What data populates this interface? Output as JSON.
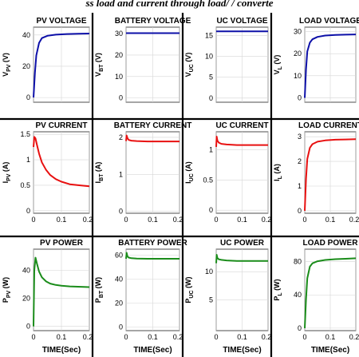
{
  "caption": "ss load and current through load/ / converte",
  "x_axis_label": "TIME(Sec)",
  "colors": {
    "voltage": "#0d10a8",
    "current": "#e81010",
    "power": "#1a8c1a",
    "separator": "#000000"
  },
  "chart_data": [
    {
      "type": "line",
      "title": "PV VOLTAGE",
      "ylabel": "V_PV (V)",
      "ylabel_main": "V",
      "ylabel_sub": "PV",
      "ylabel_unit": "(V)",
      "color": "#0d10a8",
      "xlim": [
        0,
        0.2
      ],
      "ylim": [
        -3,
        45
      ],
      "yticks": [
        "0",
        "20",
        "40"
      ],
      "ytick_values": [
        0,
        20,
        40
      ],
      "xticks": [
        "",
        "",
        ""
      ],
      "xtick_values": [
        0,
        0.1,
        0.2
      ],
      "series": [
        {
          "x": [
            0,
            0.005,
            0.01,
            0.02,
            0.03,
            0.05,
            0.08,
            0.12,
            0.16,
            0.2
          ],
          "values": [
            0,
            16,
            27,
            35,
            38,
            39.5,
            40.2,
            40.6,
            40.8,
            40.9
          ]
        }
      ]
    },
    {
      "type": "line",
      "title": "BATTERY VOLTAGE",
      "ylabel": "V_BT (V)",
      "ylabel_main": "V",
      "ylabel_sub": "BT",
      "ylabel_unit": "(V)",
      "color": "#0d10a8",
      "xlim": [
        0,
        0.2
      ],
      "ylim": [
        -2,
        33
      ],
      "yticks": [
        "0",
        "10",
        "20",
        "30"
      ],
      "ytick_values": [
        0,
        10,
        20,
        30
      ],
      "xticks": [
        "",
        "",
        ""
      ],
      "xtick_values": [
        0,
        0.1,
        0.2
      ],
      "series": [
        {
          "x": [
            0,
            0.2
          ],
          "values": [
            30.2,
            30.2
          ]
        }
      ]
    },
    {
      "type": "line",
      "title": "UC VOLTAGE",
      "ylabel": "V_UC (V)",
      "ylabel_main": "V",
      "ylabel_sub": "UC",
      "ylabel_unit": "(V)",
      "color": "#0d10a8",
      "xlim": [
        0,
        0.2
      ],
      "ylim": [
        -1,
        17
      ],
      "yticks": [
        "0",
        "5",
        "10",
        "15"
      ],
      "ytick_values": [
        0,
        5,
        10,
        15
      ],
      "xticks": [
        "",
        "",
        ""
      ],
      "xtick_values": [
        0,
        0.1,
        0.2
      ],
      "series": [
        {
          "x": [
            0,
            0.2
          ],
          "values": [
            16,
            16
          ]
        }
      ]
    },
    {
      "type": "line",
      "title": "LOAD VOLTAGE",
      "ylabel": "V_L (V)",
      "ylabel_main": "V",
      "ylabel_sub": "L",
      "ylabel_unit": "(V)",
      "color": "#0d10a8",
      "xlim": [
        0,
        0.2
      ],
      "ylim": [
        -2,
        32
      ],
      "yticks": [
        "0",
        "10",
        "20",
        "30"
      ],
      "ytick_values": [
        0,
        10,
        20,
        30
      ],
      "xticks": [
        "",
        "",
        ""
      ],
      "xtick_values": [
        0,
        0.1,
        0.2
      ],
      "series": [
        {
          "x": [
            0,
            0.005,
            0.01,
            0.02,
            0.03,
            0.05,
            0.08,
            0.12,
            0.16,
            0.2
          ],
          "values": [
            0,
            13,
            21,
            25,
            26.5,
            27.6,
            28.2,
            28.5,
            28.6,
            28.7
          ]
        }
      ]
    },
    {
      "type": "line",
      "title": "PV CURRENT",
      "ylabel": "I_PV (A)",
      "ylabel_main": "I",
      "ylabel_sub": "PV",
      "ylabel_unit": "(A)",
      "color": "#e81010",
      "xlim": [
        0,
        0.2
      ],
      "ylim": [
        -0.05,
        1.55
      ],
      "yticks": [
        "0",
        "0.5",
        "1",
        "1.5"
      ],
      "ytick_values": [
        0,
        0.5,
        1,
        1.5
      ],
      "xticks": [
        "0",
        "0.1",
        "0.2"
      ],
      "xtick_values": [
        0,
        0.1,
        0.2
      ],
      "series": [
        {
          "x": [
            0,
            0.003,
            0.007,
            0.012,
            0.02,
            0.03,
            0.045,
            0.06,
            0.08,
            0.1,
            0.13,
            0.16,
            0.2
          ],
          "values": [
            1.25,
            1.45,
            1.42,
            1.3,
            1.12,
            0.95,
            0.8,
            0.7,
            0.62,
            0.57,
            0.52,
            0.5,
            0.48
          ]
        }
      ]
    },
    {
      "type": "line",
      "title": "BATTERY CURRENT",
      "ylabel": "I_BT (A)",
      "ylabel_main": "I",
      "ylabel_sub": "BT",
      "ylabel_unit": "(A)",
      "color": "#e81010",
      "xlim": [
        0,
        0.2
      ],
      "ylim": [
        -0.05,
        2.15
      ],
      "yticks": [
        "0",
        "1",
        "2"
      ],
      "ytick_values": [
        0,
        1,
        2
      ],
      "xticks": [
        "0",
        "0.1",
        "0.2"
      ],
      "xtick_values": [
        0,
        0.1,
        0.2
      ],
      "series": [
        {
          "x": [
            0,
            0.002,
            0.005,
            0.01,
            0.02,
            0.04,
            0.08,
            0.2
          ],
          "values": [
            1.9,
            2.05,
            1.98,
            1.93,
            1.91,
            1.9,
            1.89,
            1.89
          ]
        }
      ]
    },
    {
      "type": "line",
      "title": "UC CURRENT",
      "ylabel": "I_UC (A)",
      "ylabel_main": "I",
      "ylabel_sub": "UC",
      "ylabel_unit": "(A)",
      "color": "#e81010",
      "xlim": [
        0,
        0.2
      ],
      "ylim": [
        -0.05,
        1.3
      ],
      "yticks": [
        "0",
        "0.5",
        "1"
      ],
      "ytick_values": [
        0,
        0.5,
        1
      ],
      "xticks": [
        "0",
        "0.1",
        "0.2"
      ],
      "xtick_values": [
        0,
        0.1,
        0.2
      ],
      "series": [
        {
          "x": [
            0,
            0.002,
            0.005,
            0.01,
            0.02,
            0.04,
            0.08,
            0.2
          ],
          "values": [
            1.05,
            1.22,
            1.15,
            1.12,
            1.1,
            1.09,
            1.08,
            1.08
          ]
        }
      ]
    },
    {
      "type": "line",
      "title": "LOAD CURRENT",
      "ylabel": "I_L (A)",
      "ylabel_main": "I",
      "ylabel_sub": "L",
      "ylabel_unit": "(A)",
      "color": "#e81010",
      "xlim": [
        0,
        0.2
      ],
      "ylim": [
        -0.1,
        3.2
      ],
      "yticks": [
        "0",
        "1",
        "2",
        "3"
      ],
      "ytick_values": [
        0,
        1,
        2,
        3
      ],
      "xticks": [
        "0",
        "0.1",
        "0.2"
      ],
      "xtick_values": [
        0,
        0.1,
        0.2
      ],
      "series": [
        {
          "x": [
            0,
            0.005,
            0.01,
            0.02,
            0.03,
            0.05,
            0.08,
            0.12,
            0.16,
            0.2
          ],
          "values": [
            0,
            1.3,
            2.1,
            2.55,
            2.7,
            2.8,
            2.85,
            2.88,
            2.89,
            2.9
          ]
        }
      ]
    },
    {
      "type": "line",
      "title": "PV POWER",
      "ylabel": "P_PV (W)",
      "ylabel_main": "P",
      "ylabel_sub": "PV",
      "ylabel_unit": "(W)",
      "color": "#1a8c1a",
      "xlim": [
        0,
        0.2
      ],
      "ylim": [
        -3,
        55
      ],
      "yticks": [
        "0",
        "20",
        "40"
      ],
      "ytick_values": [
        0,
        20,
        40
      ],
      "xticks": [
        "0",
        "0.1",
        "0.2"
      ],
      "xtick_values": [
        0,
        0.1,
        0.2
      ],
      "series": [
        {
          "x": [
            0,
            0.003,
            0.007,
            0.012,
            0.02,
            0.03,
            0.045,
            0.06,
            0.08,
            0.1,
            0.13,
            0.16,
            0.2
          ],
          "values": [
            0,
            40,
            49,
            45,
            39,
            35,
            32,
            30.5,
            29.5,
            29,
            28.5,
            28.3,
            28
          ]
        }
      ]
    },
    {
      "type": "line",
      "title": "BATTERY POWER",
      "ylabel": "P_BT (W)",
      "ylabel_main": "P",
      "ylabel_sub": "BT",
      "ylabel_unit": "(W)",
      "color": "#1a8c1a",
      "xlim": [
        0,
        0.2
      ],
      "ylim": [
        -3,
        65
      ],
      "yticks": [
        "0",
        "20",
        "40",
        "60"
      ],
      "ytick_values": [
        0,
        20,
        40,
        60
      ],
      "xticks": [
        "0",
        "0.1",
        "0.2"
      ],
      "xtick_values": [
        0,
        0.1,
        0.2
      ],
      "series": [
        {
          "x": [
            0,
            0.002,
            0.005,
            0.01,
            0.02,
            0.04,
            0.08,
            0.2
          ],
          "values": [
            57,
            62,
            59,
            58,
            57.5,
            57.2,
            57,
            57
          ]
        }
      ]
    },
    {
      "type": "line",
      "title": "UC POWER",
      "ylabel": "P_UC (W)",
      "ylabel_main": "P",
      "ylabel_sub": "UC",
      "ylabel_unit": "(W)",
      "color": "#1a8c1a",
      "xlim": [
        0,
        0.2
      ],
      "ylim": [
        -0.5,
        14
      ],
      "yticks": [
        "5",
        "10"
      ],
      "ytick_values": [
        5,
        10
      ],
      "xticks": [
        "0",
        "0.1",
        "0.2"
      ],
      "xtick_values": [
        0,
        0.1,
        0.2
      ],
      "series": [
        {
          "x": [
            0,
            0.002,
            0.005,
            0.01,
            0.02,
            0.04,
            0.08,
            0.2
          ],
          "values": [
            11.5,
            13,
            12.4,
            12.2,
            12.1,
            12,
            11.9,
            11.9
          ]
        }
      ]
    },
    {
      "type": "line",
      "title": "LOAD POWER",
      "ylabel": "P_L (W)",
      "ylabel_main": "P",
      "ylabel_sub": "L",
      "ylabel_unit": "(W)",
      "color": "#1a8c1a",
      "xlim": [
        0,
        0.2
      ],
      "ylim": [
        -3,
        95
      ],
      "yticks": [
        "0",
        "40",
        "80"
      ],
      "ytick_values": [
        0,
        40,
        80
      ],
      "xticks": [
        "0",
        "0.1",
        "0.2"
      ],
      "xtick_values": [
        0,
        0.1,
        0.2
      ],
      "series": [
        {
          "x": [
            0,
            0.005,
            0.01,
            0.02,
            0.03,
            0.05,
            0.08,
            0.12,
            0.16,
            0.2
          ],
          "values": [
            0,
            35,
            60,
            74,
            78,
            80.5,
            82,
            83,
            83.5,
            84
          ]
        }
      ]
    }
  ]
}
